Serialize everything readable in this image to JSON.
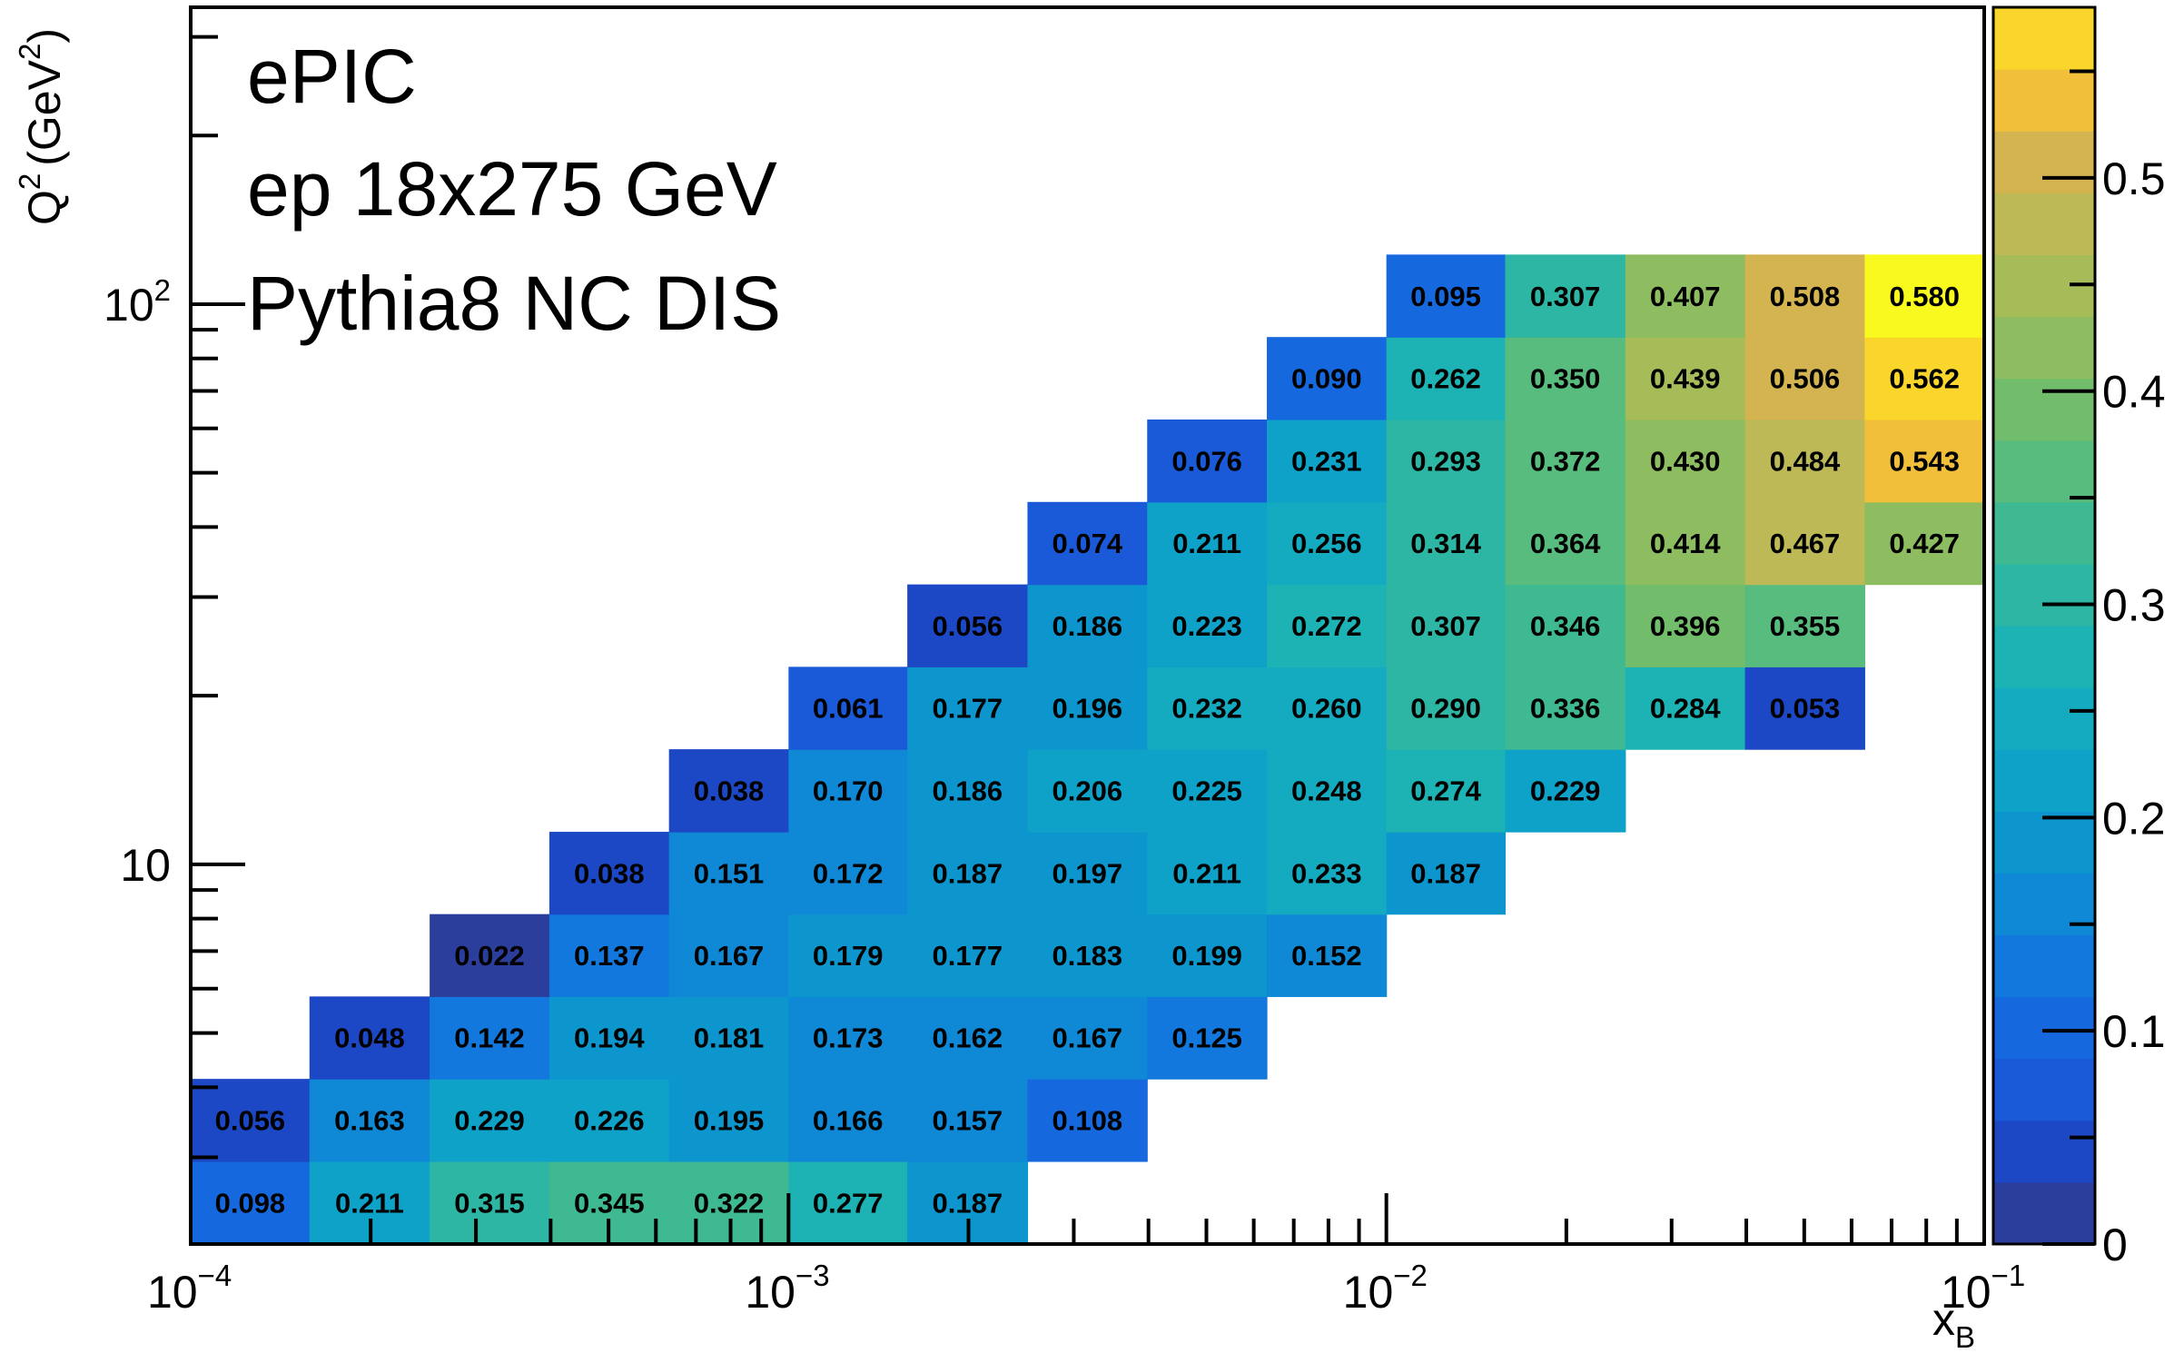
{
  "chart_data": {
    "type": "heatmap",
    "title": "",
    "xlabel": "x",
    "xlabel_subscript": "B",
    "ylabel": "Q (GeV )",
    "ylabel_superscripts": [
      "2",
      "2"
    ],
    "x_scale": "log",
    "y_scale": "log",
    "xlim": [
      0.0001,
      0.1
    ],
    "x_ticks": [
      {
        "base": "10",
        "exp": "−4"
      },
      {
        "base": "10",
        "exp": "−3"
      },
      {
        "base": "10",
        "exp": "−2"
      },
      {
        "base": "10",
        "exp": "−1"
      }
    ],
    "y_ticks": [
      {
        "value": 10,
        "base": "10",
        "exp": ""
      },
      {
        "value": 100,
        "base": "10",
        "exp": "2"
      }
    ],
    "x_bin_edges": [
      0.0001,
      0.000158,
      0.000251,
      0.000398,
      0.000631,
      0.001,
      0.00158,
      0.00251,
      0.00398,
      0.00631,
      0.01,
      0.0158,
      0.0251,
      0.0398,
      0.0631,
      0.1
    ],
    "y_bin_edges": [
      2.1,
      2.95,
      4.14,
      5.81,
      8.15,
      11.43,
      16.05,
      22.52,
      31.6,
      44.35,
      62.24,
      87.35,
      122.6,
      172.0,
      241.4,
      338.8
    ],
    "grid": false,
    "legend": "none",
    "colorbar": {
      "min": 0,
      "max": 0.58,
      "ticks": [
        "0",
        "0.1",
        "0.2",
        "0.3",
        "0.4",
        "0.5"
      ],
      "levels": 20
    },
    "annotations": [
      "ePIC",
      "ep 18x275 GeV",
      "Pythia8 NC DIS"
    ],
    "rows": [
      {
        "values": [
          0.098,
          0.211,
          0.315,
          0.345,
          0.322,
          0.277,
          0.187,
          null,
          null,
          null,
          null,
          null,
          null,
          null,
          null
        ]
      },
      {
        "values": [
          0.056,
          0.163,
          0.229,
          0.226,
          0.195,
          0.166,
          0.157,
          0.108,
          null,
          null,
          null,
          null,
          null,
          null,
          null
        ]
      },
      {
        "values": [
          null,
          0.048,
          0.142,
          0.194,
          0.181,
          0.173,
          0.162,
          0.167,
          0.125,
          null,
          null,
          null,
          null,
          null,
          null
        ]
      },
      {
        "values": [
          null,
          null,
          0.022,
          0.137,
          0.167,
          0.179,
          0.177,
          0.183,
          0.199,
          0.152,
          null,
          null,
          null,
          null,
          null
        ]
      },
      {
        "values": [
          null,
          null,
          null,
          0.038,
          0.151,
          0.172,
          0.187,
          0.197,
          0.211,
          0.233,
          0.187,
          null,
          null,
          null,
          null
        ]
      },
      {
        "values": [
          null,
          null,
          null,
          null,
          0.038,
          0.17,
          0.186,
          0.206,
          0.225,
          0.248,
          0.274,
          0.229,
          null,
          null,
          null
        ]
      },
      {
        "values": [
          null,
          null,
          null,
          null,
          null,
          0.061,
          0.177,
          0.196,
          0.232,
          0.26,
          0.29,
          0.336,
          0.284,
          0.053,
          null
        ]
      },
      {
        "values": [
          null,
          null,
          null,
          null,
          null,
          null,
          0.056,
          0.186,
          0.223,
          0.272,
          0.307,
          0.346,
          0.396,
          0.355,
          null
        ]
      },
      {
        "values": [
          null,
          null,
          null,
          null,
          null,
          null,
          null,
          0.074,
          0.211,
          0.256,
          0.314,
          0.364,
          0.414,
          0.467,
          0.427
        ]
      },
      {
        "values": [
          null,
          null,
          null,
          null,
          null,
          null,
          null,
          null,
          0.076,
          0.231,
          0.293,
          0.372,
          0.43,
          0.484,
          0.543
        ]
      },
      {
        "values": [
          null,
          null,
          null,
          null,
          null,
          null,
          null,
          null,
          null,
          0.09,
          0.262,
          0.35,
          0.439,
          0.506,
          0.562
        ]
      },
      {
        "values": [
          null,
          null,
          null,
          null,
          null,
          null,
          null,
          null,
          null,
          null,
          0.095,
          0.307,
          0.407,
          0.508,
          0.58
        ]
      }
    ]
  },
  "palette": [
    "#2c3e9b",
    "#1c48c6",
    "#1a59d8",
    "#1668df",
    "#1278de",
    "#0f88d5",
    "#0d96cd",
    "#0ea2c8",
    "#14abc1",
    "#1db2b4",
    "#2cb6a3",
    "#3fb991",
    "#58bc7e",
    "#72bd6c",
    "#8dbd60",
    "#a6bc58",
    "#bdb957",
    "#d3b450",
    "#f1bf39",
    "#fad52b",
    "#f8f91e"
  ]
}
